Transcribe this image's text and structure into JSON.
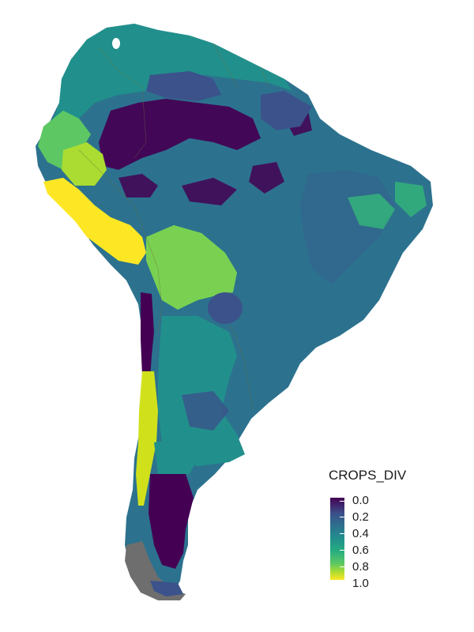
{
  "legend": {
    "title": "CROPS_DIV",
    "ticks": [
      "0.0",
      "0.2",
      "0.4",
      "0.6",
      "0.8",
      "1.0"
    ],
    "scale": "viridis",
    "range": [
      0,
      1
    ]
  },
  "colors": {
    "v0": "#440154",
    "v02": "#3b528b",
    "v04": "#2c728e",
    "v06": "#21908c",
    "v08": "#5dc863",
    "v10": "#fde725",
    "unsampled": "#6e6e6e",
    "background": "#ffffff"
  }
}
